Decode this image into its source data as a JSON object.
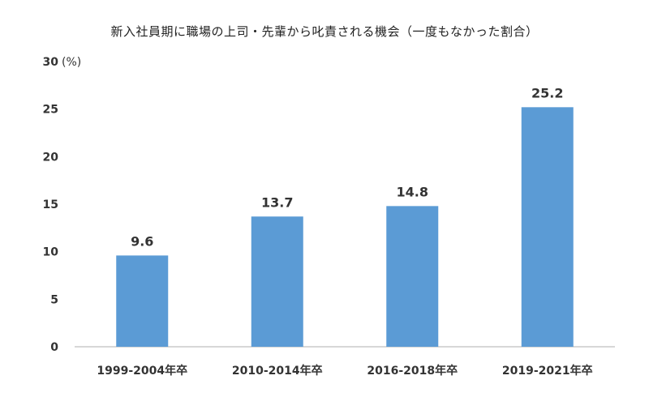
{
  "chart_data": {
    "type": "bar",
    "title": "新入社員期に職場の上司・先輩から叱責される機会（一度もなかった割合）",
    "ylabel": "(%)",
    "ylim": [
      0,
      30
    ],
    "yticks": [
      "0",
      "5",
      "10",
      "15",
      "20",
      "25",
      "30"
    ],
    "categories": [
      "1999-2004年卒",
      "2010-2014年卒",
      "2016-2018年卒",
      "2019-2021年卒"
    ],
    "values": [
      9.6,
      13.7,
      14.8,
      25.2
    ],
    "labels": [
      "9.6",
      "13.7",
      "14.8",
      "25.2"
    ],
    "grid": false,
    "bar_color": "#5b9bd5"
  }
}
